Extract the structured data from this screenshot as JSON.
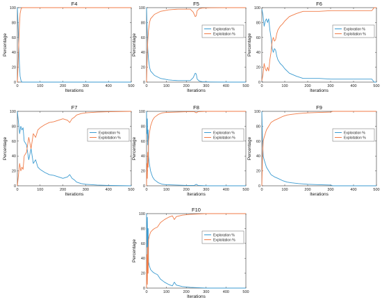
{
  "colors": {
    "exploration": "#3a9ad0",
    "exploitation": "#f07a45",
    "axis": "#333333",
    "legend_border": "#666666"
  },
  "chart_data": [
    {
      "type": "line",
      "title": "F4",
      "xlabel": "Iterations",
      "ylabel": "Percentage",
      "xlim": [
        0,
        500
      ],
      "ylim": [
        0,
        100
      ],
      "xticks": [
        "0",
        "100",
        "200",
        "300",
        "400",
        "500"
      ],
      "yticks": [
        "0",
        "20",
        "40",
        "60",
        "80",
        "100"
      ],
      "grid": false,
      "legend": null,
      "series": [
        {
          "name": "Exploration %",
          "x": [
            0,
            3,
            6,
            9,
            12,
            16,
            20,
            500
          ],
          "y": [
            100,
            80,
            50,
            25,
            8,
            2,
            0,
            0
          ]
        },
        {
          "name": "Exploitation %",
          "x": [
            0,
            3,
            6,
            9,
            12,
            16,
            20,
            500
          ],
          "y": [
            0,
            20,
            50,
            75,
            92,
            98,
            100,
            100
          ]
        }
      ]
    },
    {
      "type": "line",
      "title": "F5",
      "xlabel": "Iterations",
      "ylabel": "Percentage",
      "xlim": [
        0,
        500
      ],
      "ylim": [
        0,
        100
      ],
      "xticks": [
        "0",
        "100",
        "200",
        "300",
        "400",
        "500"
      ],
      "yticks": [
        "0",
        "20",
        "40",
        "60",
        "80",
        "100"
      ],
      "grid": false,
      "legend": "center-right",
      "series": [
        {
          "name": "Exploration %",
          "x": [
            0,
            3,
            6,
            10,
            15,
            20,
            30,
            40,
            55,
            70,
            90,
            110,
            130,
            160,
            190,
            220,
            235,
            245,
            250,
            255,
            265,
            280,
            320,
            400,
            500
          ],
          "y": [
            100,
            70,
            45,
            30,
            20,
            15,
            12,
            9,
            7,
            5,
            4,
            3,
            2.5,
            2,
            2,
            2,
            6,
            12,
            11,
            4,
            1.5,
            0.5,
            0.2,
            0,
            0
          ]
        },
        {
          "name": "Exploitation %",
          "x": [
            0,
            3,
            6,
            10,
            15,
            20,
            30,
            40,
            55,
            70,
            90,
            110,
            130,
            160,
            190,
            220,
            235,
            245,
            250,
            255,
            265,
            280,
            320,
            400,
            500
          ],
          "y": [
            0,
            30,
            55,
            70,
            80,
            85,
            88,
            91,
            93,
            95,
            96,
            97,
            97.5,
            98,
            98,
            98,
            94,
            88,
            89,
            96,
            98.5,
            99.5,
            99.8,
            100,
            100
          ]
        }
      ]
    },
    {
      "type": "line",
      "title": "F6",
      "xlabel": "Iterations",
      "ylabel": "Percentage",
      "xlim": [
        0,
        500
      ],
      "ylim": [
        0,
        100
      ],
      "xticks": [
        "0",
        "100",
        "200",
        "300",
        "400",
        "500"
      ],
      "yticks": [
        "0",
        "20",
        "40",
        "60",
        "80",
        "100"
      ],
      "grid": false,
      "legend": "top-right",
      "series": [
        {
          "name": "Exploration %",
          "x": [
            0,
            5,
            10,
            15,
            20,
            25,
            30,
            35,
            40,
            45,
            50,
            55,
            60,
            65,
            70,
            80,
            90,
            100,
            120,
            150,
            180,
            250,
            300,
            350,
            400,
            480,
            490,
            500
          ],
          "y": [
            98,
            90,
            75,
            82,
            85,
            80,
            85,
            70,
            60,
            45,
            40,
            45,
            43,
            35,
            30,
            25,
            22,
            18,
            12,
            8,
            5,
            5,
            4,
            4,
            4,
            4,
            0,
            0
          ]
        },
        {
          "name": "Exploitation %",
          "x": [
            0,
            5,
            10,
            15,
            20,
            25,
            30,
            35,
            40,
            45,
            50,
            55,
            60,
            65,
            70,
            80,
            90,
            100,
            120,
            150,
            180,
            250,
            300,
            350,
            400,
            480,
            490,
            500
          ],
          "y": [
            2,
            10,
            25,
            18,
            15,
            20,
            15,
            30,
            40,
            55,
            60,
            55,
            57,
            65,
            70,
            75,
            78,
            82,
            88,
            92,
            95,
            95,
            96,
            96,
            96,
            96,
            100,
            100
          ]
        }
      ]
    },
    {
      "type": "line",
      "title": "F7",
      "xlabel": "Iterations",
      "ylabel": "Percentage",
      "xlim": [
        0,
        500
      ],
      "ylim": [
        0,
        100
      ],
      "xticks": [
        "0",
        "100",
        "200",
        "300",
        "400",
        "500"
      ],
      "yticks": [
        "0",
        "20",
        "40",
        "60",
        "80",
        "100"
      ],
      "grid": false,
      "legend": "top-right",
      "series": [
        {
          "name": "Exploration %",
          "x": [
            0,
            5,
            10,
            15,
            20,
            25,
            30,
            40,
            50,
            60,
            70,
            80,
            90,
            100,
            120,
            140,
            160,
            180,
            200,
            220,
            230,
            240,
            250,
            260,
            280,
            300,
            350,
            400,
            500
          ],
          "y": [
            100,
            85,
            70,
            80,
            75,
            78,
            60,
            55,
            35,
            50,
            30,
            35,
            25,
            22,
            18,
            15,
            14,
            12,
            10,
            12,
            15,
            10,
            8,
            5,
            3,
            2,
            1,
            0.5,
            0
          ]
        },
        {
          "name": "Exploitation %",
          "x": [
            0,
            5,
            10,
            15,
            20,
            25,
            30,
            40,
            50,
            60,
            70,
            80,
            90,
            100,
            120,
            140,
            160,
            180,
            200,
            220,
            230,
            240,
            250,
            260,
            280,
            300,
            350,
            400,
            500
          ],
          "y": [
            0,
            15,
            30,
            20,
            25,
            22,
            40,
            45,
            65,
            50,
            70,
            65,
            75,
            78,
            82,
            85,
            86,
            88,
            90,
            88,
            85,
            90,
            92,
            95,
            97,
            98,
            99,
            99.5,
            100
          ]
        }
      ]
    },
    {
      "type": "line",
      "title": "F8",
      "xlabel": "Iterations",
      "ylabel": "Percentage",
      "xlim": [
        0,
        500
      ],
      "ylim": [
        0,
        100
      ],
      "xticks": [
        "0",
        "100",
        "200",
        "300",
        "400",
        "500"
      ],
      "yticks": [
        "0",
        "20",
        "40",
        "60",
        "80",
        "100"
      ],
      "grid": false,
      "legend": "center-right",
      "series": [
        {
          "name": "Exploration %",
          "x": [
            0,
            2,
            4,
            6,
            8,
            10,
            14,
            20,
            30,
            40,
            60,
            80,
            100,
            150,
            200,
            240,
            250,
            260,
            300,
            400,
            500
          ],
          "y": [
            100,
            70,
            90,
            55,
            75,
            40,
            30,
            20,
            12,
            8,
            4,
            2,
            1.5,
            1,
            0.5,
            0.5,
            2,
            0.5,
            0,
            0,
            0
          ]
        },
        {
          "name": "Exploitation %",
          "x": [
            0,
            2,
            4,
            6,
            8,
            10,
            14,
            20,
            30,
            40,
            60,
            80,
            100,
            150,
            200,
            240,
            250,
            260,
            300,
            400,
            500
          ],
          "y": [
            0,
            30,
            10,
            45,
            25,
            60,
            70,
            80,
            88,
            92,
            96,
            98,
            98.5,
            99,
            99.5,
            99.5,
            98,
            99.5,
            100,
            100,
            100
          ]
        }
      ]
    },
    {
      "type": "line",
      "title": "F9",
      "xlabel": "Iterations",
      "ylabel": "Percentage",
      "xlim": [
        0,
        500
      ],
      "ylim": [
        0,
        100
      ],
      "xticks": [
        "0",
        "100",
        "200",
        "300",
        "400",
        "500"
      ],
      "yticks": [
        "0",
        "20",
        "40",
        "60",
        "80",
        "100"
      ],
      "grid": false,
      "legend": "center-right",
      "series": [
        {
          "name": "Exploration %",
          "x": [
            0,
            3,
            6,
            10,
            15,
            20,
            30,
            40,
            55,
            70,
            90,
            110,
            130,
            160,
            200,
            250,
            300,
            310,
            400,
            500
          ],
          "y": [
            100,
            60,
            40,
            35,
            30,
            25,
            20,
            15,
            12,
            10,
            7,
            5,
            4,
            3,
            2,
            1.5,
            1,
            0,
            0,
            0
          ]
        },
        {
          "name": "Exploitation %",
          "x": [
            0,
            3,
            6,
            10,
            15,
            20,
            30,
            40,
            55,
            70,
            90,
            110,
            130,
            160,
            200,
            250,
            300,
            310,
            400,
            500
          ],
          "y": [
            0,
            40,
            60,
            65,
            70,
            75,
            80,
            85,
            88,
            90,
            93,
            95,
            96,
            97,
            98,
            98.5,
            99,
            100,
            100,
            100
          ]
        }
      ]
    },
    {
      "type": "line",
      "title": "F10",
      "xlabel": "Iterations",
      "ylabel": "Percentage",
      "xlim": [
        0,
        500
      ],
      "ylim": [
        0,
        100
      ],
      "xticks": [
        "0",
        "100",
        "200",
        "300",
        "400",
        "500"
      ],
      "yticks": [
        "0",
        "20",
        "40",
        "60",
        "80",
        "100"
      ],
      "grid": false,
      "legend": "center-right",
      "series": [
        {
          "name": "Exploration %",
          "x": [
            0,
            2,
            4,
            6,
            8,
            10,
            14,
            20,
            30,
            40,
            55,
            70,
            90,
            110,
            130,
            140,
            150,
            180,
            220,
            260,
            300,
            400,
            500
          ],
          "y": [
            100,
            55,
            95,
            45,
            80,
            35,
            30,
            25,
            22,
            20,
            18,
            12,
            8,
            5,
            3,
            8,
            4,
            2,
            1,
            0.5,
            0,
            0,
            0
          ]
        },
        {
          "name": "Exploitation %",
          "x": [
            0,
            2,
            4,
            6,
            8,
            10,
            14,
            20,
            30,
            40,
            55,
            70,
            90,
            110,
            130,
            140,
            150,
            180,
            220,
            260,
            300,
            400,
            500
          ],
          "y": [
            0,
            45,
            5,
            55,
            20,
            65,
            70,
            75,
            78,
            80,
            82,
            88,
            92,
            95,
            97,
            92,
            96,
            98,
            99,
            99.5,
            100,
            100,
            100
          ]
        }
      ]
    }
  ]
}
